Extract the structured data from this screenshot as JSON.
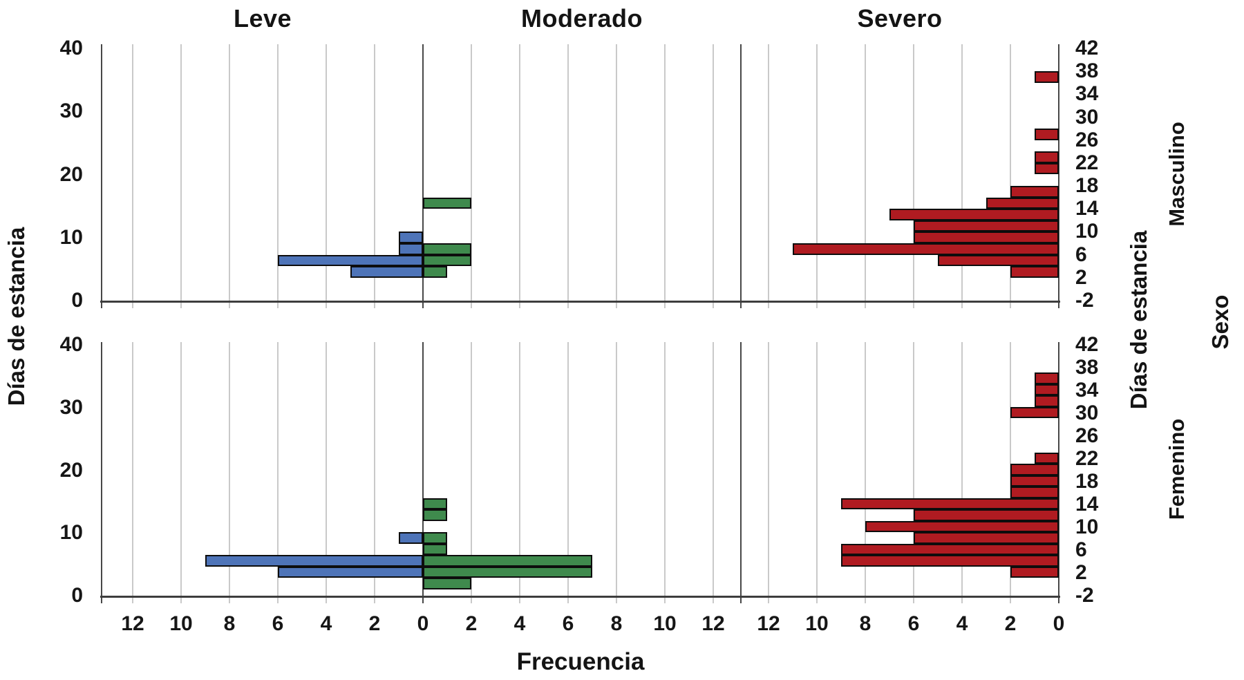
{
  "chart_data": {
    "type": "bar",
    "orientation": "horizontal_pyramid_histogram",
    "section_titles": [
      "Leve",
      "Moderado",
      "Severo"
    ],
    "xlabel": "Frecuencia",
    "ylabel_left": "Días de estancia",
    "ylabel_right": "Días de estancia",
    "facet_outer_label": "Sexo",
    "row_labels": [
      "Masculino",
      "Femenino"
    ],
    "bin_width_days": 2,
    "ylim_left": [
      0,
      40
    ],
    "ylim_right": [
      -2,
      42
    ],
    "left_axis_ticks": [
      40,
      30,
      20,
      10,
      0
    ],
    "right_axis_ticks": [
      42,
      38,
      34,
      30,
      26,
      22,
      18,
      14,
      10,
      6,
      2,
      -2
    ],
    "x_ticks_leve_moderado": [
      "12",
      "10",
      "8",
      "6",
      "4",
      "2",
      "0",
      "2",
      "4",
      "6",
      "8",
      "10",
      "12"
    ],
    "x_ticks_severo": [
      "12",
      "10",
      "8",
      "6",
      "4",
      "2",
      "0"
    ],
    "grid": "vertical_gridlines_every_2",
    "colors": {
      "leve": "#4e74b8",
      "moderado": "#3f8a4d",
      "severo": "#b01b21",
      "bar_border": "#0d0d0d",
      "gridline": "#c9c9c9",
      "axis": "#474747",
      "text": "#161616"
    },
    "series_by_panel": [
      {
        "sex": "Masculino",
        "leve": {
          "bins": [
            2,
            4,
            6,
            8
          ],
          "values": [
            3,
            6,
            1,
            1
          ]
        },
        "moderado": {
          "bins": [
            2,
            4,
            6,
            14
          ],
          "values": [
            1,
            2,
            2,
            2
          ]
        },
        "severo": {
          "bins": [
            2,
            4,
            6,
            8,
            10,
            12,
            14,
            16,
            20,
            22,
            26,
            36
          ],
          "values": [
            2,
            5,
            11,
            6,
            6,
            7,
            3,
            2,
            1,
            1,
            1,
            1
          ]
        }
      },
      {
        "sex": "Femenino",
        "leve": {
          "bins": [
            2,
            4,
            8
          ],
          "values": [
            6,
            9,
            1
          ]
        },
        "moderado": {
          "bins": [
            0,
            2,
            4,
            6,
            8,
            12,
            14
          ],
          "values": [
            2,
            7,
            7,
            1,
            1,
            1,
            1
          ]
        },
        "severo": {
          "bins": [
            2,
            4,
            6,
            8,
            10,
            12,
            14,
            16,
            18,
            20,
            22,
            30,
            32,
            34,
            36
          ],
          "values": [
            2,
            9,
            9,
            6,
            8,
            6,
            9,
            2,
            2,
            2,
            1,
            2,
            1,
            1,
            1
          ]
        }
      }
    ]
  }
}
